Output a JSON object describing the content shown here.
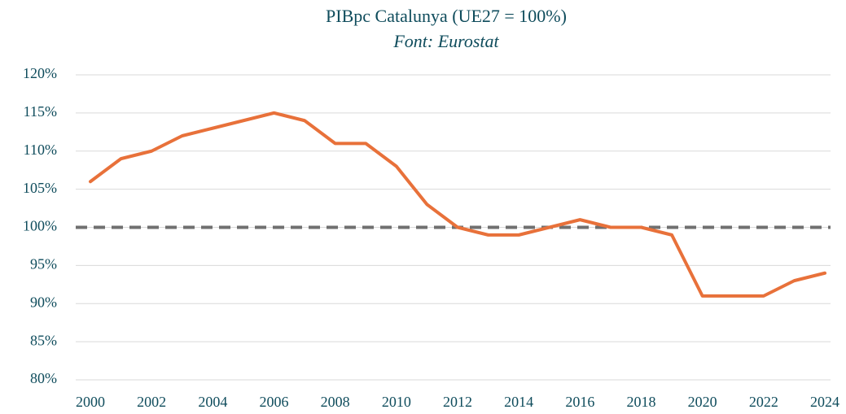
{
  "chart_data": {
    "type": "line",
    "title": "PIBpc Catalunya (UE27 = 100%)",
    "subtitle": "Font: Eurostat",
    "x": [
      2000,
      2001,
      2002,
      2003,
      2004,
      2005,
      2006,
      2007,
      2008,
      2009,
      2010,
      2011,
      2012,
      2013,
      2014,
      2015,
      2016,
      2017,
      2018,
      2019,
      2020,
      2021,
      2022,
      2023,
      2024
    ],
    "values": [
      106,
      109,
      110,
      112,
      113,
      114,
      115,
      114,
      111,
      111,
      108,
      103,
      100,
      99,
      99,
      100,
      101,
      100,
      100,
      99,
      91,
      91,
      91,
      93,
      94
    ],
    "color": "#e8713a",
    "reference_value": 100,
    "reference_color": "#707070",
    "xlim": [
      2000,
      2024
    ],
    "xticks": [
      2000,
      2002,
      2004,
      2006,
      2008,
      2010,
      2012,
      2014,
      2016,
      2018,
      2020,
      2022,
      2024
    ],
    "ylim": [
      80,
      120
    ],
    "yticks": [
      {
        "value": 80,
        "label": "80%"
      },
      {
        "value": 85,
        "label": "85%"
      },
      {
        "value": 90,
        "label": "90%"
      },
      {
        "value": 95,
        "label": "95%"
      },
      {
        "value": 100,
        "label": "100%"
      },
      {
        "value": 105,
        "label": "105%"
      },
      {
        "value": 110,
        "label": "110%"
      },
      {
        "value": 115,
        "label": "115%"
      },
      {
        "value": 120,
        "label": "120%"
      }
    ],
    "grid": true
  }
}
